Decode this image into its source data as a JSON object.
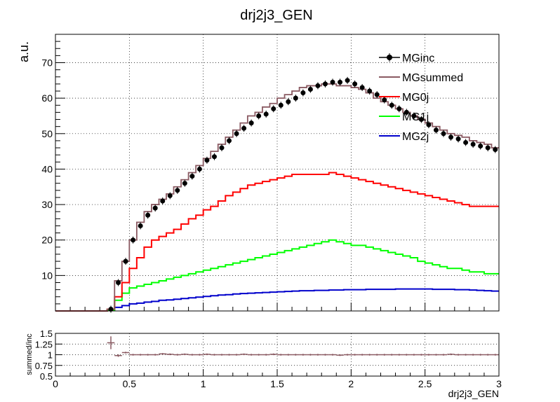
{
  "title": "drj2j3_GEN",
  "colors": {
    "MGinc": "#000000",
    "MGsummed": "#8a5a62",
    "MG0j": "#ff0000",
    "MG1j": "#00ff00",
    "MG2j": "#0000cc",
    "ratio": "#8a5a62"
  },
  "chart_data": [
    {
      "type": "line",
      "title": "drj2j3_GEN",
      "xlabel": "",
      "ylabel": "a.u.",
      "xlim": [
        0,
        3
      ],
      "ylim": [
        0,
        78
      ],
      "grid": true,
      "legend_position": "top-right",
      "yticks": [
        10,
        20,
        30,
        40,
        50,
        60,
        70
      ],
      "bin_edges_start": 0,
      "bin_width": 0.05,
      "series": [
        {
          "name": "MGinc",
          "style": "markers-with-errors",
          "values": [
            0,
            0,
            0,
            0,
            0,
            0,
            0,
            0.5,
            8,
            14,
            20,
            24,
            27,
            29,
            31,
            32.5,
            34,
            36,
            38,
            40,
            42.5,
            43.5,
            46,
            48,
            50,
            51.5,
            53,
            55,
            55.5,
            57,
            58,
            59,
            60,
            61.5,
            62.5,
            63.5,
            64,
            64.5,
            64.5,
            65,
            64,
            63,
            62,
            61,
            59.5,
            58,
            57,
            56,
            55,
            54,
            52.5,
            51,
            50,
            49,
            48.5,
            47.5,
            47,
            46.5,
            46,
            45.5
          ]
        },
        {
          "name": "MGsummed",
          "style": "step",
          "values": [
            0,
            0,
            0,
            0,
            0,
            0,
            0,
            0.5,
            8.5,
            14,
            20,
            25,
            28,
            30,
            31.5,
            33,
            35,
            37,
            39,
            41,
            43,
            45,
            47,
            49,
            51,
            53,
            55,
            56,
            57.5,
            58.5,
            60,
            61,
            62,
            63,
            63.5,
            63.5,
            64,
            64,
            63.5,
            63.5,
            63,
            62.5,
            61.5,
            60,
            59,
            58,
            57,
            56,
            55,
            54,
            53,
            52,
            51,
            50,
            49.5,
            49,
            48,
            47.5,
            47,
            46
          ]
        },
        {
          "name": "MG0j",
          "style": "step",
          "values": [
            0,
            0,
            0,
            0,
            0,
            0,
            0,
            0.5,
            4,
            8,
            12,
            15,
            18,
            20,
            21,
            22,
            23,
            24.5,
            26,
            27,
            28.5,
            29.5,
            31,
            32.5,
            33.5,
            34.5,
            35.5,
            36,
            36.5,
            37,
            37.5,
            38,
            38.5,
            38.5,
            38.5,
            38.5,
            38.5,
            39,
            38.5,
            38,
            37.5,
            37,
            36.5,
            36,
            35.5,
            35,
            34.5,
            34,
            33.5,
            33,
            32.5,
            32,
            31.5,
            31,
            30.5,
            30,
            29.5,
            29.5,
            29.5,
            29.5
          ]
        },
        {
          "name": "MG1j",
          "style": "step",
          "values": [
            0,
            0,
            0,
            0,
            0,
            0,
            0,
            0.3,
            3,
            5,
            6.5,
            7,
            7.5,
            8,
            8.5,
            9,
            9.5,
            10,
            10.5,
            11,
            11.5,
            12,
            12.5,
            13,
            13.5,
            14,
            14.5,
            15,
            15.5,
            16,
            16.5,
            17,
            17.5,
            18,
            18.5,
            19,
            19.5,
            20,
            19.5,
            19,
            18.5,
            18.5,
            18,
            17.5,
            17,
            16.5,
            16,
            15.5,
            15,
            14,
            13.5,
            13,
            12.5,
            12,
            12,
            11.5,
            11,
            11,
            10.5,
            10.5
          ]
        },
        {
          "name": "MG2j",
          "style": "step",
          "values": [
            0,
            0,
            0,
            0,
            0,
            0,
            0,
            0.2,
            1,
            1.5,
            2,
            2.2,
            2.5,
            2.7,
            3,
            3.1,
            3.3,
            3.5,
            3.7,
            3.9,
            4.1,
            4.3,
            4.5,
            4.6,
            4.8,
            4.9,
            5,
            5.1,
            5.2,
            5.3,
            5.4,
            5.5,
            5.6,
            5.7,
            5.7,
            5.8,
            5.8,
            5.9,
            5.9,
            6,
            6,
            6,
            6.1,
            6.1,
            6.1,
            6.1,
            6.2,
            6.2,
            6.2,
            6.2,
            6.2,
            6.1,
            6.1,
            6.1,
            6,
            6,
            5.9,
            5.8,
            5.7,
            5.6
          ]
        }
      ]
    },
    {
      "type": "scatter",
      "title": "",
      "xlabel": "drj2j3_GEN",
      "ylabel": "summed/inc",
      "xlim": [
        0,
        3
      ],
      "ylim": [
        0.5,
        1.5
      ],
      "grid": true,
      "xticks": [
        0,
        0.5,
        1,
        1.5,
        2,
        2.5,
        3
      ],
      "xtick_labels": [
        "0",
        "0.5",
        "1",
        "1.5",
        "2",
        "2.5",
        "3"
      ],
      "yticks": [
        0.5,
        0.75,
        1,
        1.25,
        1.5
      ],
      "ytick_labels": [
        "0.5",
        "0.75",
        "1",
        "1.25",
        "1.5"
      ],
      "bin_edges_start": 0,
      "bin_width": 0.05,
      "series": [
        {
          "name": "",
          "style": "markers-with-errors",
          "values": [
            null,
            null,
            null,
            null,
            null,
            null,
            null,
            1.28,
            0.98,
            1.05,
            1.0,
            1.0,
            1.0,
            1.0,
            1.02,
            1.01,
            1.0,
            1.01,
            1.0,
            1.0,
            1.01,
            1.0,
            1.0,
            1.0,
            1.0,
            1.01,
            1.0,
            1.0,
            1.0,
            1.01,
            1.0,
            1.0,
            1.0,
            1.0,
            1.0,
            1.0,
            1.0,
            1.0,
            0.99,
            1.0,
            1.0,
            1.0,
            1.0,
            1.0,
            1.0,
            1.0,
            1.0,
            1.0,
            1.0,
            1.0,
            1.0,
            1.0,
            1.0,
            1.01,
            1.0,
            1.0,
            1.0,
            1.0,
            1.0,
            1.0
          ],
          "errors": [
            null,
            null,
            null,
            null,
            null,
            null,
            null,
            0.15,
            0.03,
            0.02,
            0.02,
            0.02,
            0.02,
            0.02,
            0.02,
            0.02,
            0.02,
            0.02,
            0.02,
            0.02,
            0.02,
            0.02,
            0.02,
            0.02,
            0.02,
            0.02,
            0.02,
            0.02,
            0.02,
            0.02,
            0.02,
            0.02,
            0.02,
            0.02,
            0.02,
            0.02,
            0.02,
            0.02,
            0.02,
            0.02,
            0.02,
            0.02,
            0.02,
            0.02,
            0.02,
            0.02,
            0.02,
            0.02,
            0.02,
            0.02,
            0.02,
            0.02,
            0.02,
            0.02,
            0.02,
            0.02,
            0.02,
            0.02,
            0.02,
            0.02
          ]
        }
      ]
    }
  ]
}
